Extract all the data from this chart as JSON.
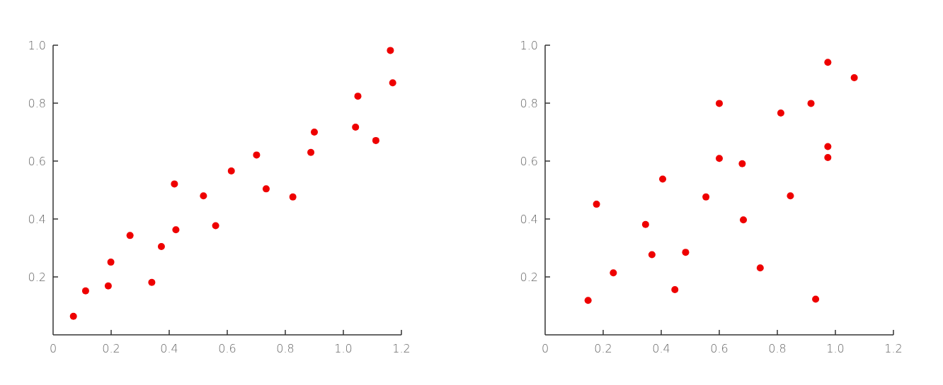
{
  "chart_data": [
    {
      "type": "scatter",
      "marker": "circle",
      "grid": false,
      "xlim": [
        0,
        1.2
      ],
      "ylim": [
        0,
        1.0
      ],
      "xticks": [
        0,
        0.2,
        0.4,
        0.6,
        0.8,
        {
          "value": 1.0,
          "label": "1.0"
        },
        1.2
      ],
      "yticks": [
        0.2,
        0.4,
        0.6,
        0.8,
        {
          "value": 1.0,
          "label": "1.0"
        }
      ],
      "series": [
        {
          "color": "#ee0000",
          "x": [
            0.07,
            0.112,
            0.19,
            0.199,
            0.265,
            0.34,
            0.373,
            0.418,
            0.423,
            0.518,
            0.56,
            0.614,
            0.701,
            0.734,
            0.826,
            0.888,
            0.9,
            1.042,
            1.05,
            1.112,
            1.162,
            1.17
          ],
          "values": [
            0.064,
            0.152,
            0.169,
            0.251,
            0.343,
            0.181,
            0.305,
            0.521,
            0.363,
            0.48,
            0.377,
            0.566,
            0.621,
            0.504,
            0.476,
            0.63,
            0.7,
            0.717,
            0.824,
            0.671,
            0.982,
            0.87
          ]
        }
      ]
    },
    {
      "type": "scatter",
      "marker": "circle",
      "grid": false,
      "xlim": [
        0,
        1.2
      ],
      "ylim": [
        0,
        1.0
      ],
      "xticks": [
        0,
        0.2,
        0.4,
        0.6,
        0.8,
        {
          "value": 1.0,
          "label": "1.0"
        },
        1.2
      ],
      "yticks": [
        0.2,
        0.4,
        0.6,
        0.8,
        {
          "value": 1.0,
          "label": "1.0"
        }
      ],
      "series": [
        {
          "color": "#ee0000",
          "x": [
            0.148,
            0.177,
            0.235,
            0.346,
            0.368,
            0.405,
            0.447,
            0.484,
            0.554,
            0.6,
            0.6,
            0.679,
            0.683,
            0.741,
            0.812,
            0.845,
            0.916,
            0.932,
            0.974,
            0.974,
            0.974,
            1.065
          ],
          "values": [
            0.119,
            0.451,
            0.214,
            0.381,
            0.277,
            0.538,
            0.156,
            0.285,
            0.476,
            0.799,
            0.609,
            0.591,
            0.397,
            0.231,
            0.766,
            0.48,
            0.799,
            0.123,
            0.941,
            0.65,
            0.612,
            0.888
          ]
        }
      ]
    }
  ]
}
